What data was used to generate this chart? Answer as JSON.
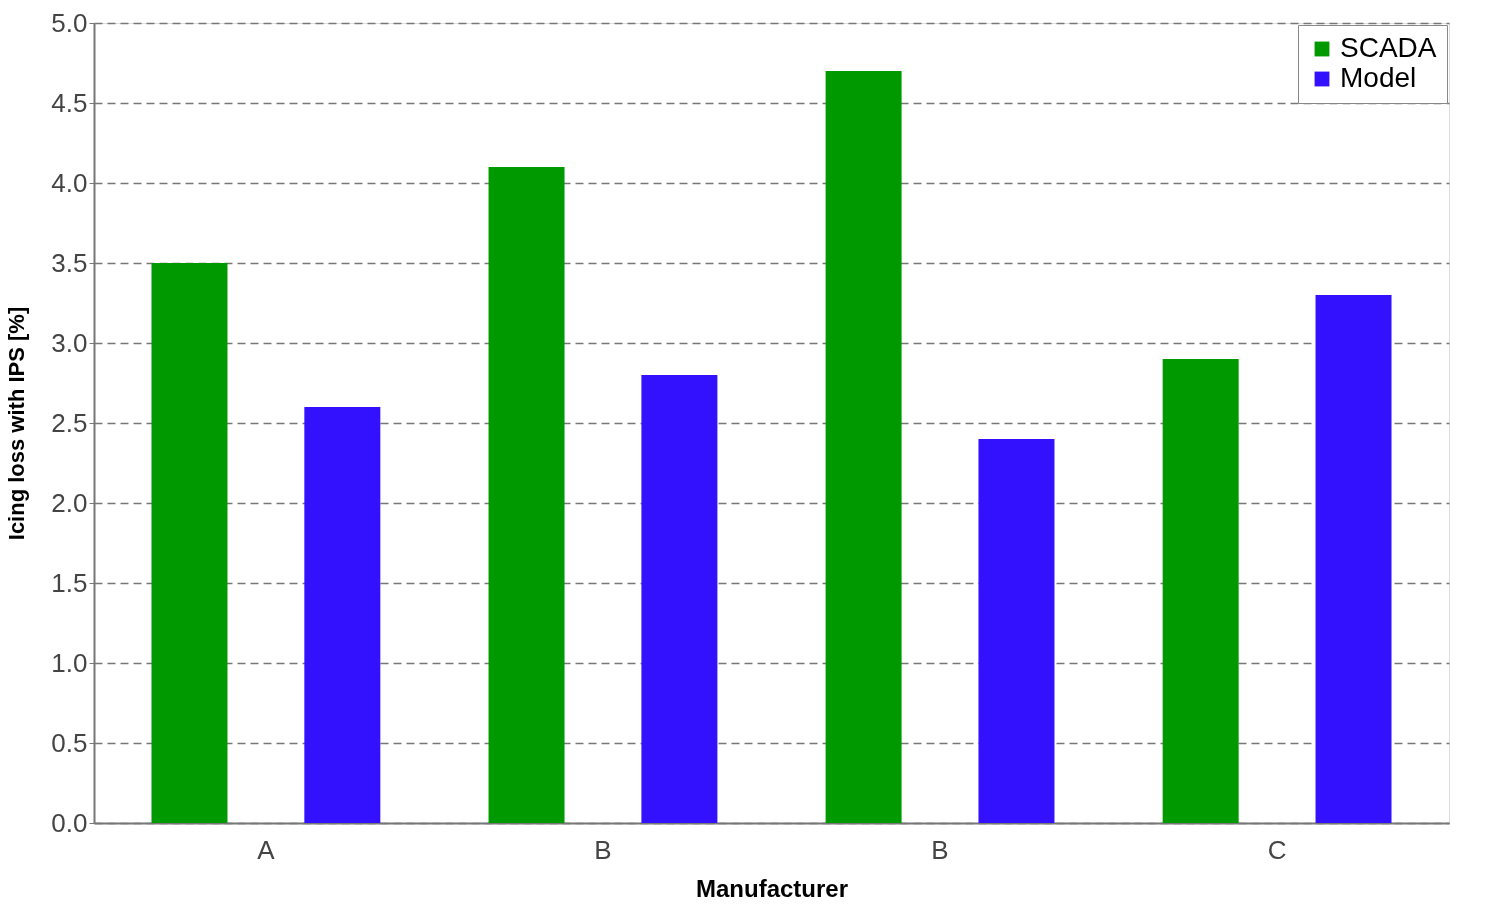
{
  "chart_data": {
    "type": "bar",
    "xlabel": "Manufacturer",
    "ylabel": "Icing loss with IPS [%]",
    "categories": [
      "A",
      "B",
      "B",
      "C"
    ],
    "series": [
      {
        "name": "SCADA",
        "color": "#009900",
        "values": [
          3.5,
          4.1,
          4.7,
          2.9
        ]
      },
      {
        "name": "Model",
        "color": "#3311ff",
        "values": [
          2.6,
          2.8,
          2.4,
          3.3
        ]
      }
    ],
    "ylim": [
      0,
      5
    ],
    "yticks": [
      {
        "value": 0,
        "label": "0.0"
      },
      0.5,
      {
        "value": 1,
        "label": "1.0"
      },
      1.5,
      {
        "value": 2,
        "label": "2.0"
      },
      2.5,
      {
        "value": 3,
        "label": "3.0"
      },
      3.5,
      {
        "value": 4,
        "label": "4.0"
      },
      4.5,
      {
        "value": 5,
        "label": "5.0"
      }
    ],
    "grid": "y",
    "legend": "top right"
  }
}
